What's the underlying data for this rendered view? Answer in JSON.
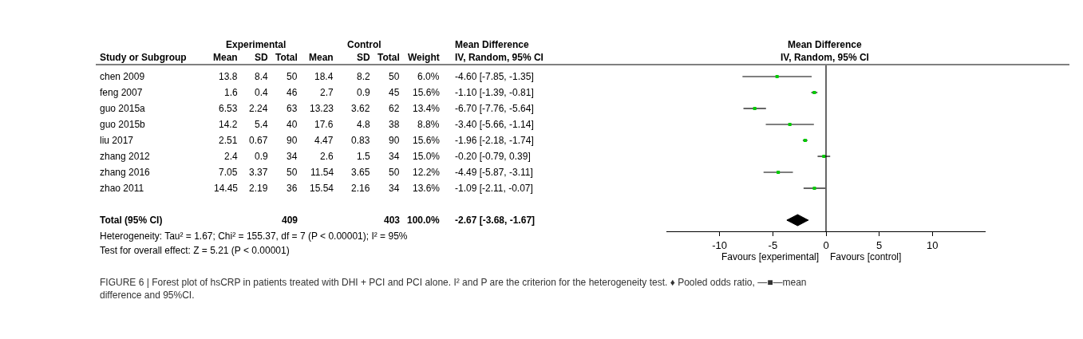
{
  "chart_data": [
    {
      "type": "other",
      "categories": [
        "Study or Subgroup",
        "Mean",
        "SD",
        "Total",
        "Mean",
        "SD",
        "Total",
        "Weight",
        "IV, Random, 95% CI"
      ],
      "y_categories": [
        "chen 2009",
        "feng 2007",
        "guo 2015a",
        "guo 2015b",
        "liu 2017",
        "zhang 2012",
        "zhang 2016",
        "zhao 2011",
        null,
        "Total (95% CI)"
      ],
      "cell_labels": [
        [
          "13.8",
          "8.4",
          "50",
          "18.4",
          "8.2",
          "50",
          "6.0%",
          "-4.60 [-7.85, -1.35]"
        ],
        [
          "1.6",
          "0.4",
          "46",
          "2.7",
          "0.9",
          "45",
          "15.6%",
          "-1.10 [-1.39, -0.81]"
        ],
        [
          "6.53",
          "2.24",
          "63",
          "13.23",
          "3.62",
          "62",
          "13.4%",
          "-6.70 [-7.76, -5.64]"
        ],
        [
          "14.2",
          "5.4",
          "40",
          "17.6",
          "4.8",
          "38",
          "8.8%",
          "-3.40 [-5.66, -1.14]"
        ],
        [
          "2.51",
          "0.67",
          "90",
          "4.47",
          "0.83",
          "90",
          "15.6%",
          "-1.96 [-2.18, -1.74]"
        ],
        [
          "2.4",
          "0.9",
          "34",
          "2.6",
          "1.5",
          "34",
          "15.0%",
          "-0.20 [-0.79, 0.39]"
        ],
        [
          "7.05",
          "3.37",
          "50",
          "11.54",
          "3.65",
          "50",
          "12.2%",
          "-4.49 [-5.87, -3.11]"
        ],
        [
          "14.45",
          "2.19",
          "36",
          "15.54",
          "2.16",
          "34",
          "13.6%",
          "-1.09 [-2.11, -0.07]"
        ],
        [
          null,
          null,
          null,
          null,
          null,
          null,
          null,
          null
        ],
        [
          null,
          null,
          "409",
          null,
          null,
          "403",
          "100.0%",
          "-2.67 [-3.68, -1.67]"
        ]
      ],
      "annotations": [
        "Experimental",
        "Control",
        "Mean Difference",
        "Heterogeneity: Tau² = 1.67; Chi² = 155.37, df = 7 (P < 0.00001); I² = 95%",
        "Test for overall effect: Z = 5.21 (P < 0.00001)",
        "FIGURE 6 | Forest plot of hsCRP in patients treated with DHI + PCI and PCI alone. I² and P are the criterion for the heterogeneity test. ♦ Pooled odds ratio, —■—mean difference and 95%CI."
      ]
    },
    {
      "type": "scatter",
      "orientation": "horizontal",
      "title": "Mean Difference",
      "subtitle": "IV, Random, 95% CI",
      "categories": [
        null,
        null,
        null,
        null,
        null,
        null,
        null,
        null,
        null,
        null
      ],
      "series": [
        {
          "color": "#00cc00",
          "marker": "square",
          "values": [
            -4.6,
            -1.1,
            -6.7,
            -3.4,
            -1.96,
            -0.2,
            -4.49,
            -1.09,
            null,
            null
          ],
          "errors": [
            [
              -7.85,
              -1.35
            ],
            [
              -1.39,
              -0.81
            ],
            [
              -7.76,
              -5.64
            ],
            [
              -5.66,
              -1.14
            ],
            [
              -2.18,
              -1.74
            ],
            [
              -0.79,
              0.39
            ],
            [
              -5.87,
              -3.11
            ],
            [
              -2.11,
              -0.07
            ],
            null,
            null
          ]
        },
        {
          "color": "#000000",
          "marker": "diamond",
          "values": [
            null,
            null,
            null,
            null,
            null,
            null,
            null,
            null,
            null,
            -2.67
          ],
          "errors": [
            null,
            null,
            null,
            null,
            null,
            null,
            null,
            null,
            null,
            [
              -3.68,
              -1.67
            ]
          ]
        }
      ],
      "xlim": [
        -15,
        15
      ],
      "xticks": [
        -10,
        -5,
        0,
        5,
        10
      ],
      "ref_lines": [
        {
          "axis": "x",
          "value": 0,
          "color": "#000000"
        }
      ],
      "tick_labels": "x",
      "annotations": [
        "Favours [experimental]",
        "Favours [control]"
      ]
    }
  ]
}
